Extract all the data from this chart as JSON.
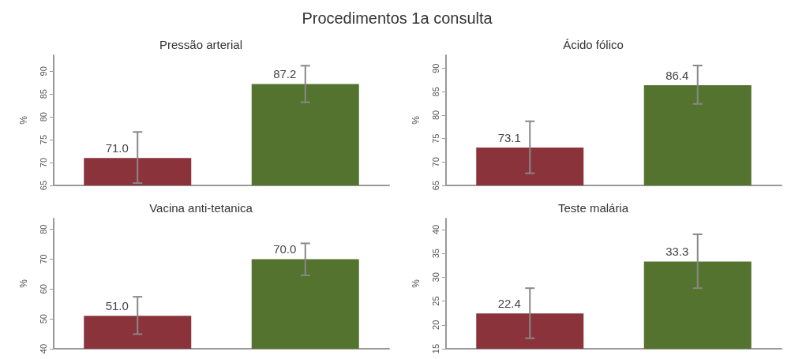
{
  "chart_data": [
    {
      "type": "bar",
      "title": "Pressão arterial",
      "ylabel": "%",
      "annotations": [
        "Procedimentos 1a consulta"
      ],
      "categories": [
        null,
        null
      ],
      "values": [
        71.0,
        87.2
      ],
      "value_labels": [
        "71.0",
        "87.2"
      ],
      "colors": [
        "#8b333b",
        "#53732e"
      ],
      "errors": [
        [
          65.5,
          76.7
        ],
        [
          83.2,
          91.2
        ]
      ],
      "ylim": [
        65,
        93.5
      ],
      "yticks": [
        65,
        70,
        75,
        80,
        85,
        90
      ],
      "grid": false
    },
    {
      "type": "bar",
      "title": "Ácido fólico",
      "ylabel": "%",
      "categories": [
        null,
        null
      ],
      "values": [
        73.1,
        86.4
      ],
      "value_labels": [
        "73.1",
        "86.4"
      ],
      "colors": [
        "#8b333b",
        "#53732e"
      ],
      "errors": [
        [
          67.6,
          78.7
        ],
        [
          82.4,
          90.6
        ]
      ],
      "ylim": [
        65,
        92.8
      ],
      "yticks": [
        65,
        70,
        75,
        80,
        85,
        90
      ],
      "grid": false
    },
    {
      "type": "bar",
      "title": "Vacina anti-tetanica",
      "ylabel": "%",
      "categories": [
        null,
        null
      ],
      "values": [
        51.0,
        70.0
      ],
      "value_labels": [
        "51.0",
        "70.0"
      ],
      "colors": [
        "#8b333b",
        "#53732e"
      ],
      "errors": [
        [
          44.9,
          57.4
        ],
        [
          64.6,
          75.3
        ]
      ],
      "ylim": [
        40,
        83.6
      ],
      "yticks": [
        40,
        50,
        60,
        70,
        80
      ],
      "grid": false
    },
    {
      "type": "bar",
      "title": "Teste malária",
      "ylabel": "%",
      "categories": [
        null,
        null
      ],
      "values": [
        22.4,
        33.3
      ],
      "value_labels": [
        "22.4",
        "33.3"
      ],
      "colors": [
        "#8b333b",
        "#53732e"
      ],
      "errors": [
        [
          17.2,
          27.7
        ],
        [
          27.7,
          39.0
        ]
      ],
      "ylim": [
        15,
        42.3
      ],
      "yticks": [
        15,
        20,
        25,
        30,
        35,
        40
      ],
      "grid": false
    }
  ]
}
